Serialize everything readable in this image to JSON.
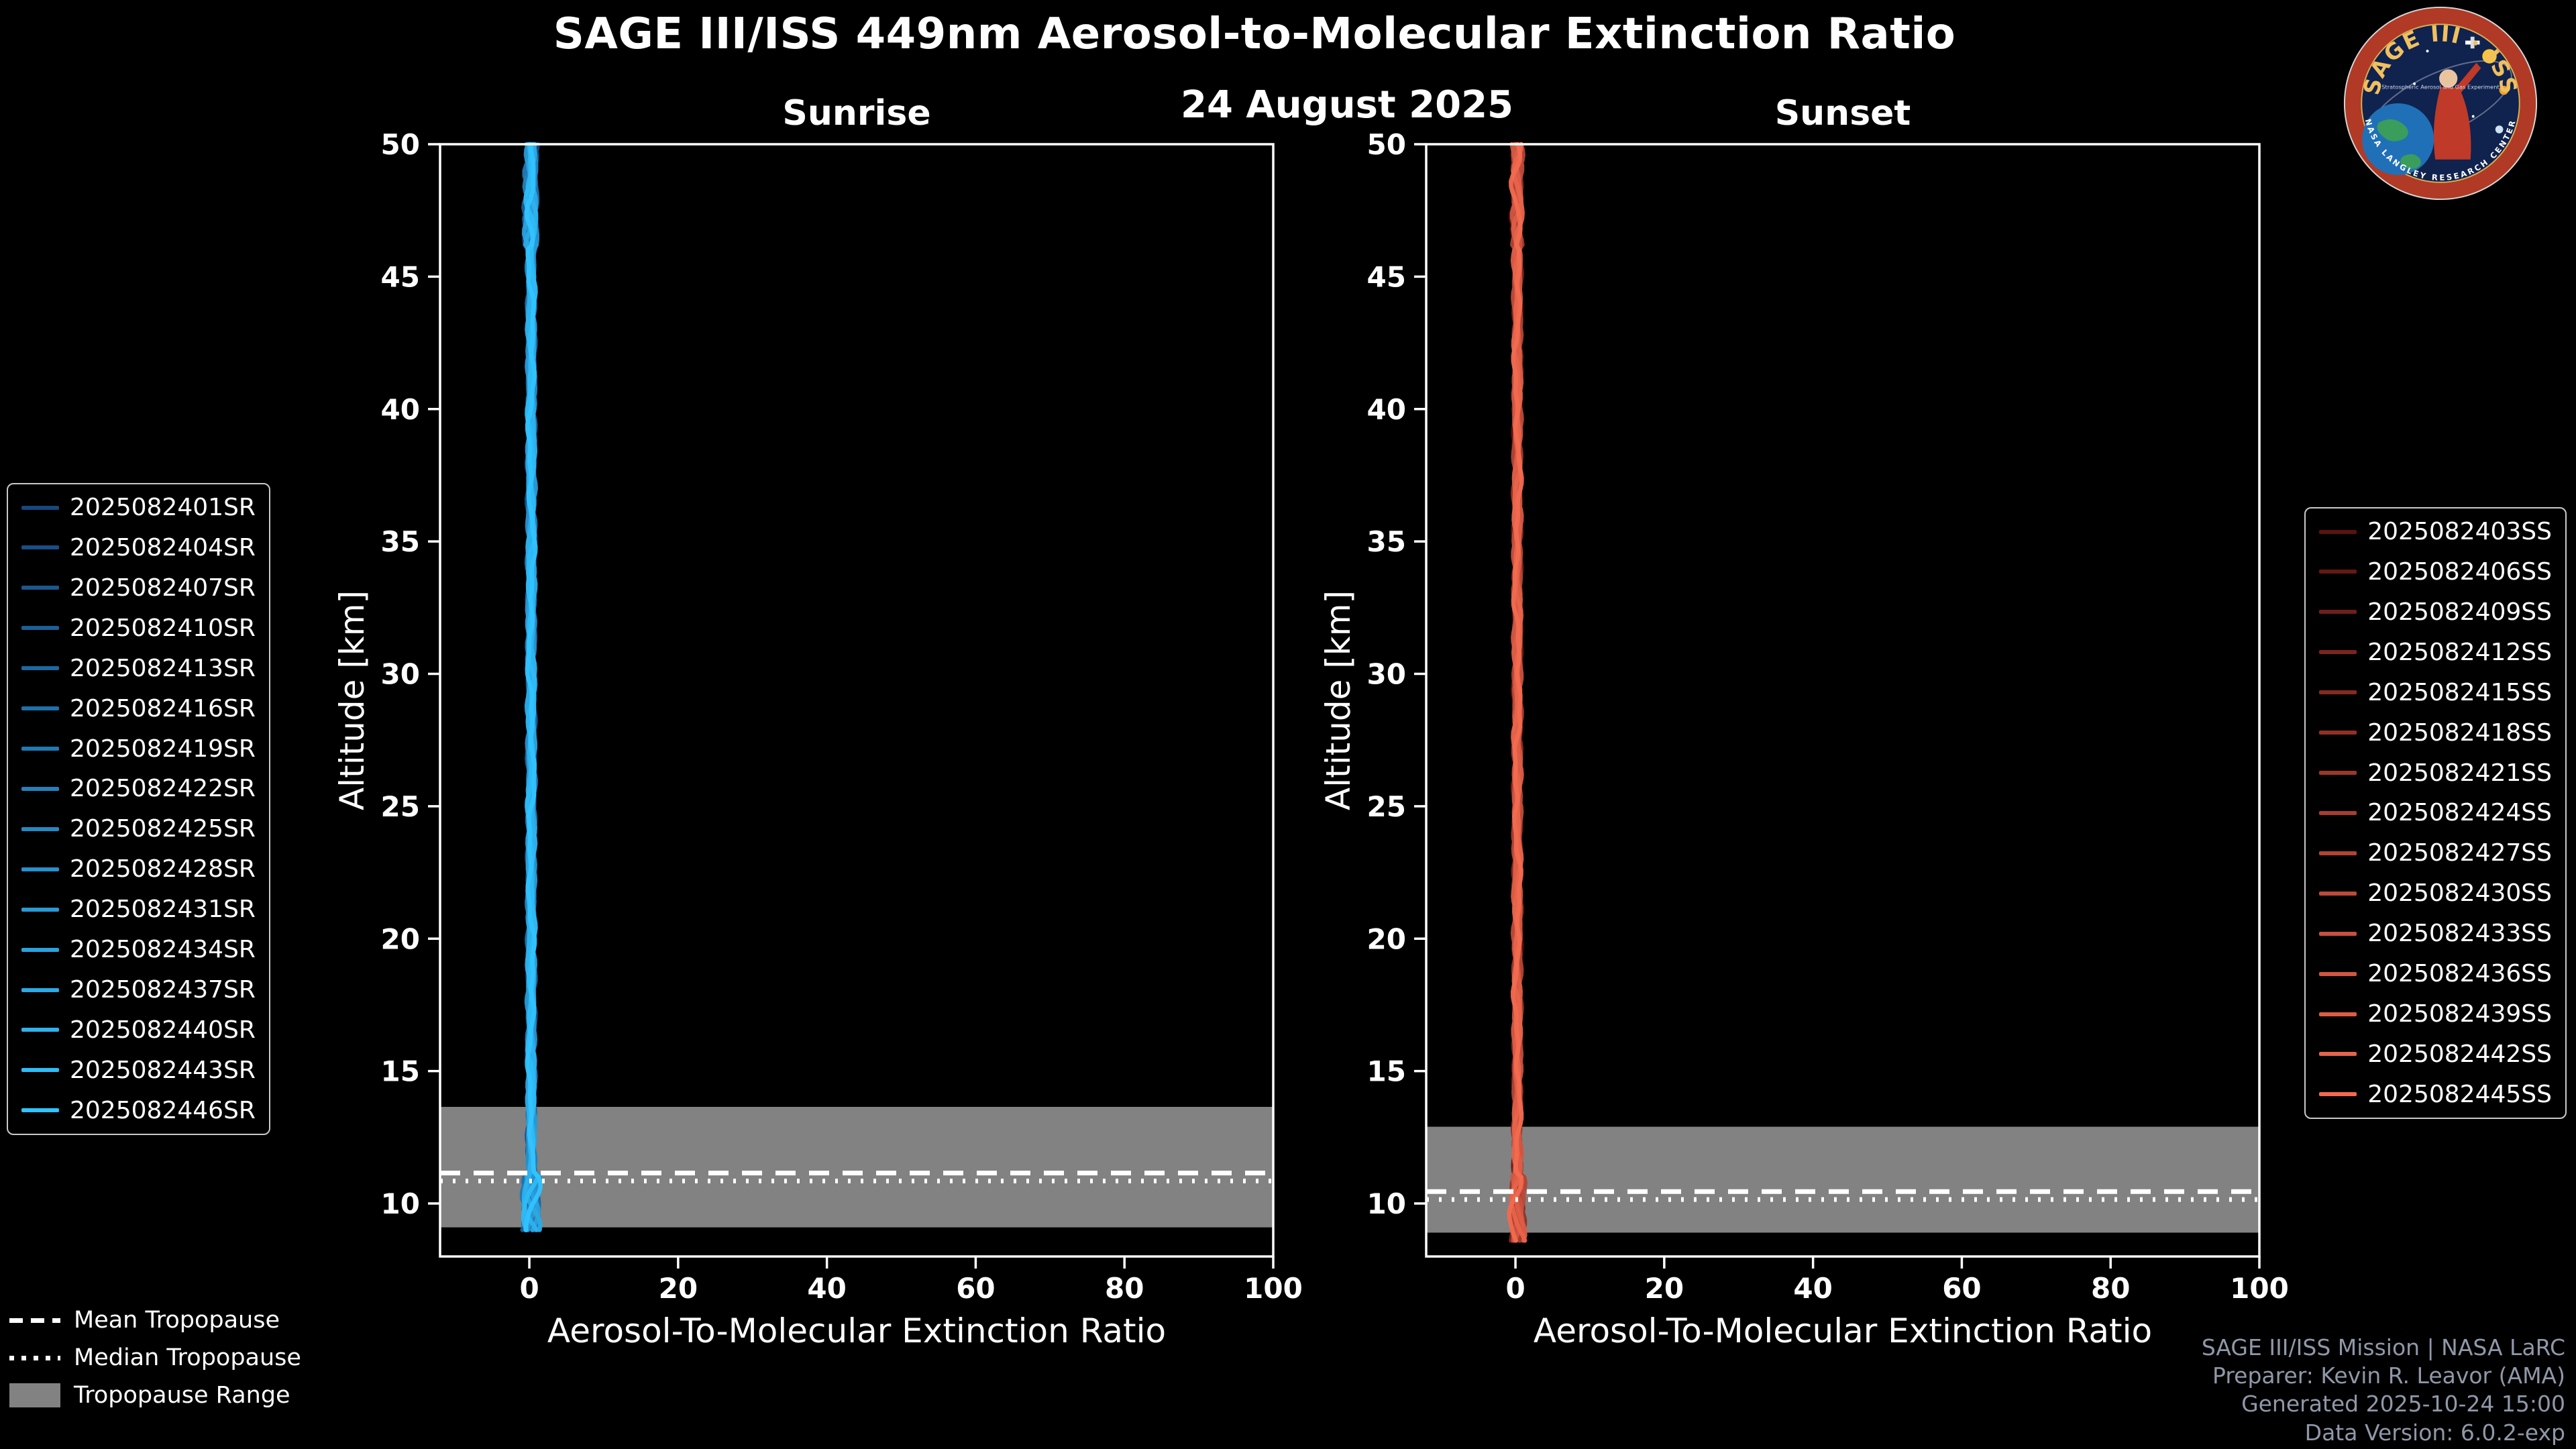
{
  "header": {
    "title": "SAGE III/ISS 449nm Aerosol-to-Molecular Extinction Ratio",
    "date": "24 August 2025"
  },
  "logo": {
    "arc_text": "SAGE III · ISS",
    "sub_text": "Stratospheric Aerosol and Gas Experiment",
    "ring_text": "NASA LANGLEY RESEARCH CENTER"
  },
  "tropopause_legend": {
    "mean": "Mean Tropopause",
    "median": "Median Tropopause",
    "range": "Tropopause Range"
  },
  "footer": {
    "lines": [
      "SAGE III/ISS Mission | NASA LaRC",
      "Preparer: Kevin R. Leavor (AMA)",
      "Generated 2025-10-24 15:00",
      "Data Version: 6.0.2-exp"
    ]
  },
  "colors": {
    "background": "#000000",
    "text": "#ffffff",
    "band": "#828282",
    "credits": "#8f98a8",
    "sunrise_start": "#16477e",
    "sunrise_end": "#31c3ff",
    "sunset_start": "#5a1212",
    "sunset_end": "#f26a4f"
  },
  "chart_data": {
    "type": "line",
    "title": "SAGE III/ISS 449nm Aerosol-to-Molecular Extinction Ratio",
    "subtitle": "24 August 2025",
    "xlabel": "Aerosol-To-Molecular Extinction Ratio",
    "ylabel": "Altitude [km]",
    "xlim": [
      -12,
      100
    ],
    "ylim": [
      8,
      50
    ],
    "xticks": [
      0,
      20,
      40,
      60,
      80,
      100
    ],
    "yticks": [
      10,
      15,
      20,
      25,
      30,
      35,
      40,
      45,
      50
    ],
    "grid": false,
    "legend_position": "outside-left and outside-right",
    "panels": [
      {
        "title": "Sunrise",
        "events": [
          "2025082401SR",
          "2025082404SR",
          "2025082407SR",
          "2025082410SR",
          "2025082413SR",
          "2025082416SR",
          "2025082419SR",
          "2025082422SR",
          "2025082425SR",
          "2025082428SR",
          "2025082431SR",
          "2025082434SR",
          "2025082437SR",
          "2025082440SR",
          "2025082443SR",
          "2025082446SR"
        ],
        "color_start": "#16477e",
        "color_end": "#31c3ff",
        "alt_min": 8.8,
        "tropopause": {
          "mean": 11.15,
          "median": 10.85,
          "range": [
            9.1,
            13.65
          ]
        },
        "mean_profile": [
          [
            8.8,
            0.6
          ],
          [
            9.5,
            -0.2
          ],
          [
            10.5,
            0.4
          ],
          [
            12,
            0.3
          ],
          [
            15,
            0.25
          ],
          [
            18,
            0.3
          ],
          [
            21,
            0.3
          ],
          [
            24,
            0.3
          ],
          [
            27,
            0.3
          ],
          [
            30,
            0.3
          ],
          [
            33,
            0.3
          ],
          [
            36,
            0.3
          ],
          [
            39,
            0.3
          ],
          [
            42,
            0.3
          ],
          [
            45,
            0.3
          ],
          [
            48,
            0.45
          ],
          [
            50,
            0.3
          ]
        ],
        "profile_note": "All sunrise events cluster near extinction ratio ~0 (approximately -1 to +1.5) from ~9 km to 50 km"
      },
      {
        "title": "Sunset",
        "events": [
          "2025082403SS",
          "2025082406SS",
          "2025082409SS",
          "2025082412SS",
          "2025082415SS",
          "2025082418SS",
          "2025082421SS",
          "2025082424SS",
          "2025082427SS",
          "2025082430SS",
          "2025082433SS",
          "2025082436SS",
          "2025082439SS",
          "2025082442SS",
          "2025082445SS"
        ],
        "color_start": "#5a1212",
        "color_end": "#f26a4f",
        "alt_min": 8.45,
        "tropopause": {
          "mean": 10.45,
          "median": 10.15,
          "range": [
            8.9,
            12.9
          ]
        },
        "mean_profile": [
          [
            8.45,
            0.3
          ],
          [
            9.5,
            0.5
          ],
          [
            10.5,
            0.2
          ],
          [
            12,
            0.3
          ],
          [
            15,
            0.3
          ],
          [
            18,
            0.3
          ],
          [
            21,
            0.3
          ],
          [
            24,
            0.3
          ],
          [
            27,
            0.3
          ],
          [
            30,
            0.3
          ],
          [
            33,
            0.3
          ],
          [
            36,
            0.3
          ],
          [
            39,
            0.3
          ],
          [
            42,
            0.3
          ],
          [
            45,
            0.4
          ],
          [
            48,
            0.5
          ],
          [
            50,
            0.35
          ]
        ],
        "profile_note": "All sunset events cluster near extinction ratio ~0 (approximately -1 to +1.5) from ~8.5 km to 50 km"
      }
    ]
  }
}
